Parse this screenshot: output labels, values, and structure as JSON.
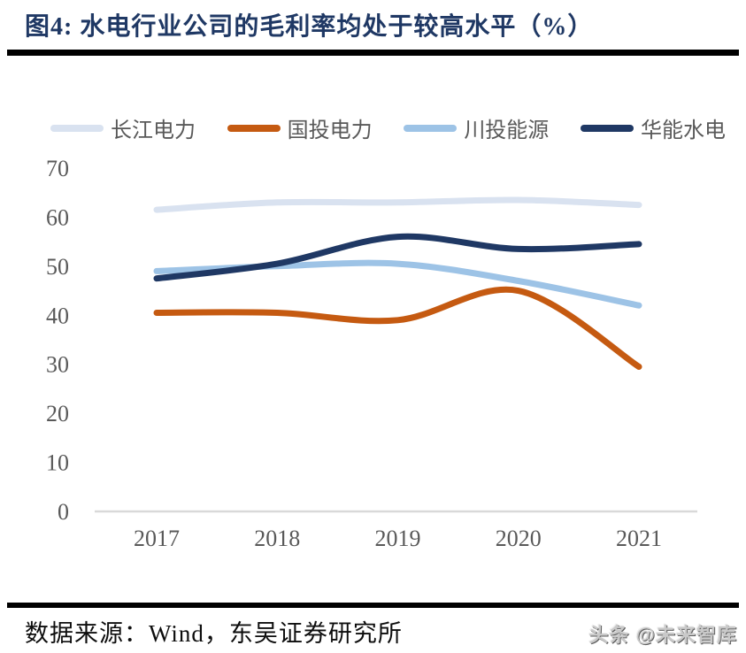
{
  "title": "图4:  水电行业公司的毛利率均处于较高水平（%）",
  "footer": {
    "source": "数据来源：Wind，东吴证券研究所",
    "watermark": "头条 @未来智库"
  },
  "colors": {
    "title": "#1F3864",
    "axis_text": "#595959",
    "axis_line": "#D9D9D9",
    "divider": "#000000"
  },
  "chart_data": {
    "type": "line",
    "title": "图4: 水电行业公司的毛利率均处于较高水平（%）",
    "x": [
      "2017",
      "2018",
      "2019",
      "2020",
      "2021"
    ],
    "series": [
      {
        "name": "长江电力",
        "color": "#D9E2F0",
        "values": [
          61.5,
          63,
          63,
          63.5,
          62.5
        ]
      },
      {
        "name": "国投电力",
        "color": "#C55A11",
        "values": [
          40.5,
          40.5,
          39,
          45,
          29.5
        ]
      },
      {
        "name": "川投能源",
        "color": "#9DC3E6",
        "values": [
          49,
          50,
          50.5,
          47,
          42
        ]
      },
      {
        "name": "华能水电",
        "color": "#1F3864",
        "values": [
          47.5,
          50.5,
          56,
          53.5,
          54.5
        ]
      }
    ],
    "ylabel": "",
    "xlabel": "",
    "ylim": [
      0,
      70
    ],
    "y_ticks": [
      0,
      10,
      20,
      30,
      40,
      50,
      60,
      70
    ],
    "grid": false,
    "legend_position": "top",
    "line_smoothing": true
  }
}
